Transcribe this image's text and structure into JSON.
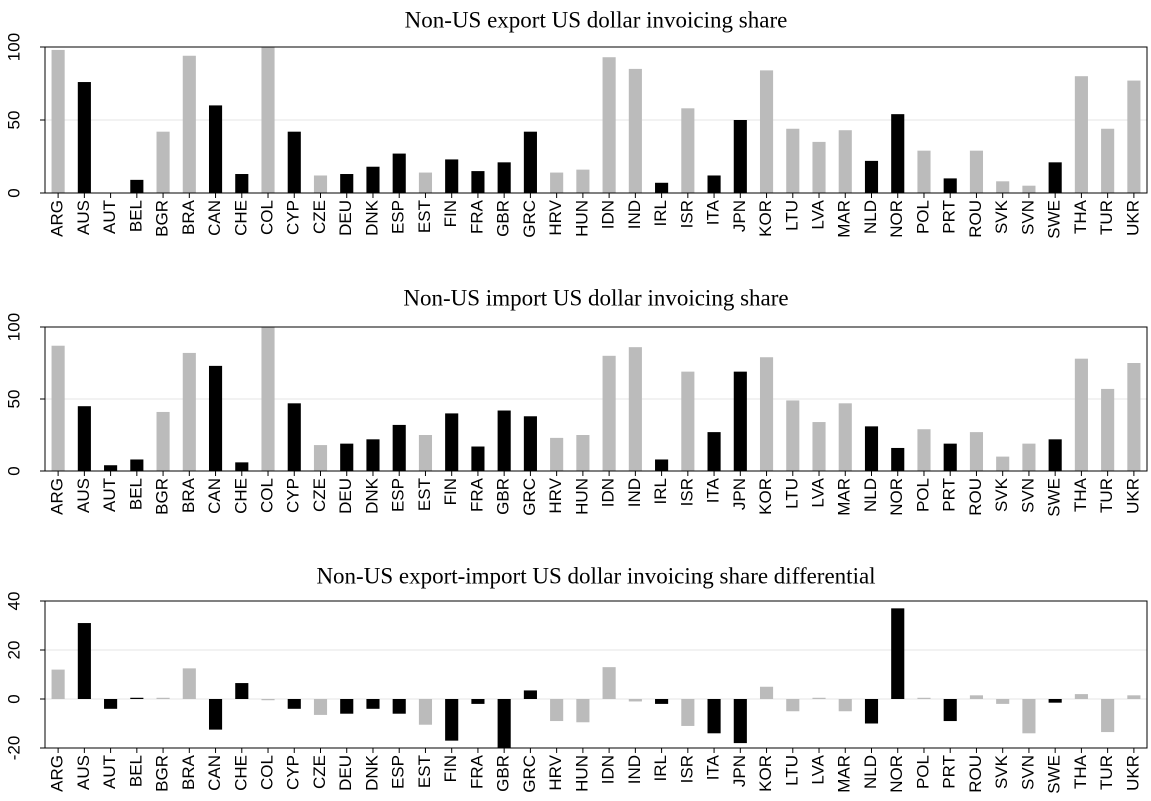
{
  "chart_data": [
    {
      "type": "bar",
      "title": "Non-US export US dollar invoicing share",
      "categories": [
        "ARG",
        "AUS",
        "AUT",
        "BEL",
        "BGR",
        "BRA",
        "CAN",
        "CHE",
        "COL",
        "CYP",
        "CZE",
        "DEU",
        "DNK",
        "ESP",
        "EST",
        "FIN",
        "FRA",
        "GBR",
        "GRC",
        "HRV",
        "HUN",
        "IDN",
        "IND",
        "IRL",
        "ISR",
        "ITA",
        "JPN",
        "KOR",
        "LTU",
        "LVA",
        "MAR",
        "NLD",
        "NOR",
        "POL",
        "PRT",
        "ROU",
        "SVK",
        "SVN",
        "SWE",
        "THA",
        "TUR",
        "UKR"
      ],
      "values": [
        98,
        76,
        0,
        9,
        42,
        94,
        60,
        13,
        100,
        42,
        12,
        13,
        18,
        27,
        14,
        23,
        15,
        21,
        42,
        14,
        16,
        93,
        85,
        7,
        58,
        12,
        50,
        84,
        44,
        35,
        43,
        22,
        54,
        29,
        10,
        29,
        8,
        5,
        21,
        80,
        44,
        77
      ],
      "colors": [
        "#bbbbbb",
        "#000000",
        "#000000",
        "#000000",
        "#bbbbbb",
        "#bbbbbb",
        "#000000",
        "#000000",
        "#bbbbbb",
        "#000000",
        "#bbbbbb",
        "#000000",
        "#000000",
        "#000000",
        "#bbbbbb",
        "#000000",
        "#000000",
        "#000000",
        "#000000",
        "#bbbbbb",
        "#bbbbbb",
        "#bbbbbb",
        "#bbbbbb",
        "#000000",
        "#bbbbbb",
        "#000000",
        "#000000",
        "#bbbbbb",
        "#bbbbbb",
        "#bbbbbb",
        "#bbbbbb",
        "#000000",
        "#000000",
        "#bbbbbb",
        "#000000",
        "#bbbbbb",
        "#bbbbbb",
        "#bbbbbb",
        "#000000",
        "#bbbbbb",
        "#bbbbbb",
        "#bbbbbb"
      ],
      "ylim": [
        0,
        100
      ],
      "yticks": [
        0,
        50,
        100
      ],
      "grid": true
    },
    {
      "type": "bar",
      "title": "Non-US import US dollar invoicing share",
      "categories": [
        "ARG",
        "AUS",
        "AUT",
        "BEL",
        "BGR",
        "BRA",
        "CAN",
        "CHE",
        "COL",
        "CYP",
        "CZE",
        "DEU",
        "DNK",
        "ESP",
        "EST",
        "FIN",
        "FRA",
        "GBR",
        "GRC",
        "HRV",
        "HUN",
        "IDN",
        "IND",
        "IRL",
        "ISR",
        "ITA",
        "JPN",
        "KOR",
        "LTU",
        "LVA",
        "MAR",
        "NLD",
        "NOR",
        "POL",
        "PRT",
        "ROU",
        "SVK",
        "SVN",
        "SWE",
        "THA",
        "TUR",
        "UKR"
      ],
      "values": [
        87,
        45,
        4,
        8,
        41,
        82,
        73,
        6,
        100,
        47,
        18,
        19,
        22,
        32,
        25,
        40,
        17,
        42,
        38,
        23,
        25,
        80,
        86,
        8,
        69,
        27,
        69,
        79,
        49,
        34,
        47,
        31,
        16,
        29,
        19,
        27,
        10,
        19,
        22,
        78,
        57,
        75
      ],
      "colors": [
        "#bbbbbb",
        "#000000",
        "#000000",
        "#000000",
        "#bbbbbb",
        "#bbbbbb",
        "#000000",
        "#000000",
        "#bbbbbb",
        "#000000",
        "#bbbbbb",
        "#000000",
        "#000000",
        "#000000",
        "#bbbbbb",
        "#000000",
        "#000000",
        "#000000",
        "#000000",
        "#bbbbbb",
        "#bbbbbb",
        "#bbbbbb",
        "#bbbbbb",
        "#000000",
        "#bbbbbb",
        "#000000",
        "#000000",
        "#bbbbbb",
        "#bbbbbb",
        "#bbbbbb",
        "#bbbbbb",
        "#000000",
        "#000000",
        "#bbbbbb",
        "#000000",
        "#bbbbbb",
        "#bbbbbb",
        "#bbbbbb",
        "#000000",
        "#bbbbbb",
        "#bbbbbb",
        "#bbbbbb"
      ],
      "ylim": [
        0,
        100
      ],
      "yticks": [
        0,
        50,
        100
      ],
      "grid": true
    },
    {
      "type": "bar",
      "title": "Non-US export-import US dollar invoicing share differential",
      "categories": [
        "ARG",
        "AUS",
        "AUT",
        "BEL",
        "BGR",
        "BRA",
        "CAN",
        "CHE",
        "COL",
        "CYP",
        "CZE",
        "DEU",
        "DNK",
        "ESP",
        "EST",
        "FIN",
        "FRA",
        "GBR",
        "GRC",
        "HRV",
        "HUN",
        "IDN",
        "IND",
        "IRL",
        "ISR",
        "ITA",
        "JPN",
        "KOR",
        "LTU",
        "LVA",
        "MAR",
        "NLD",
        "NOR",
        "POL",
        "PRT",
        "ROU",
        "SVK",
        "SVN",
        "SWE",
        "THA",
        "TUR",
        "UKR"
      ],
      "values": [
        12,
        31,
        -4,
        0.5,
        0.5,
        12.5,
        -12.5,
        6.5,
        -0.5,
        -4,
        -6.5,
        -6,
        -4,
        -6,
        -10.5,
        -17,
        -2,
        -21,
        3.5,
        -9,
        -9.5,
        13,
        -1,
        -2,
        -11,
        -14,
        -18,
        5,
        -5,
        0.5,
        -5,
        -10,
        37,
        0.5,
        -9,
        1.5,
        -2,
        -14,
        -1.5,
        2,
        -13.5,
        1.5
      ],
      "colors": [
        "#bbbbbb",
        "#000000",
        "#000000",
        "#000000",
        "#bbbbbb",
        "#bbbbbb",
        "#000000",
        "#000000",
        "#bbbbbb",
        "#000000",
        "#bbbbbb",
        "#000000",
        "#000000",
        "#000000",
        "#bbbbbb",
        "#000000",
        "#000000",
        "#000000",
        "#000000",
        "#bbbbbb",
        "#bbbbbb",
        "#bbbbbb",
        "#bbbbbb",
        "#000000",
        "#bbbbbb",
        "#000000",
        "#000000",
        "#bbbbbb",
        "#bbbbbb",
        "#bbbbbb",
        "#bbbbbb",
        "#000000",
        "#000000",
        "#bbbbbb",
        "#000000",
        "#bbbbbb",
        "#bbbbbb",
        "#bbbbbb",
        "#000000",
        "#bbbbbb",
        "#bbbbbb",
        "#bbbbbb"
      ],
      "ylim": [
        -20,
        40
      ],
      "yticks": [
        -20,
        0,
        20,
        40
      ],
      "grid": true
    }
  ]
}
